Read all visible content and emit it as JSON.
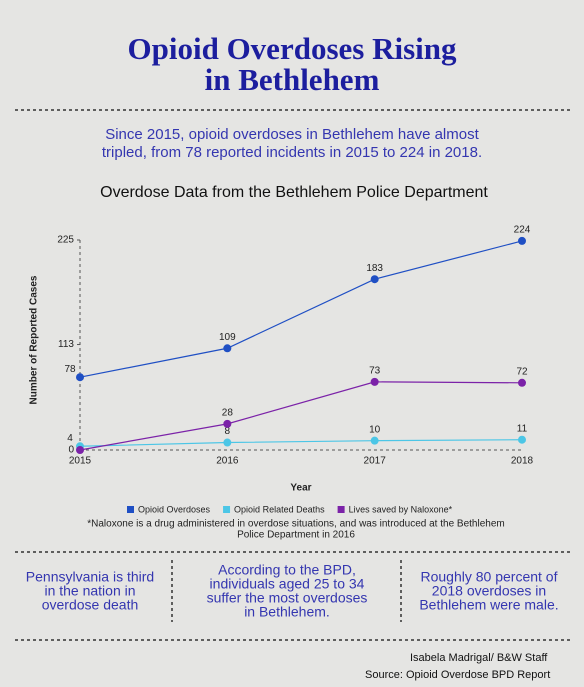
{
  "header": {
    "title": [
      "Opioid Overdoses Rising",
      "in Bethlehem"
    ],
    "subtitle": [
      "Since 2015, opioid overdoses in Bethlehem have almost",
      "tripled, from 78 reported incidents in 2015 to 224 in 2018."
    ]
  },
  "chart_data": {
    "type": "line",
    "title": "Overdose Data from the Bethlehem Police Department",
    "x_label": "Year",
    "y_label": "Number of Reported Cases",
    "categories": [
      "2015",
      "2016",
      "2017",
      "2018"
    ],
    "series": [
      {
        "name": "Opioid Overdoses",
        "color": "#1f4fc4",
        "values": [
          78,
          109,
          183,
          224
        ],
        "value_labels": [
          "78",
          "109",
          "183",
          "224"
        ]
      },
      {
        "name": "Opioid Related Deaths",
        "color": "#4cc6e6",
        "values": [
          4,
          8,
          10,
          11
        ],
        "value_labels": [
          "4",
          "8",
          "10",
          "11"
        ]
      },
      {
        "name": "Lives saved by Naloxone*",
        "color": "#7b22a8",
        "values": [
          0,
          28,
          73,
          72
        ],
        "value_labels": [
          null,
          "28",
          "73",
          "72"
        ]
      }
    ],
    "ylim": [
      0,
      225
    ],
    "yticks": [
      0,
      113,
      225
    ],
    "footnote": [
      "*Naloxone is a drug administered in overdose situations, and was introduced at the Bethlehem",
      "Police Department in 2016"
    ]
  },
  "facts": [
    [
      "Pennsylvania is third",
      "in the nation in",
      "overdose death"
    ],
    [
      "According to the BPD,",
      "individuals aged 25 to 34",
      "suffer the most overdoses",
      "in Bethlehem."
    ],
    [
      "Roughly 80 percent of",
      "2018 overdoses in",
      "Bethlehem were male."
    ]
  ],
  "credits": [
    "Isabela Madrigal/ B&W Staff",
    "Source:  Opioid Overdose BPD Report"
  ]
}
